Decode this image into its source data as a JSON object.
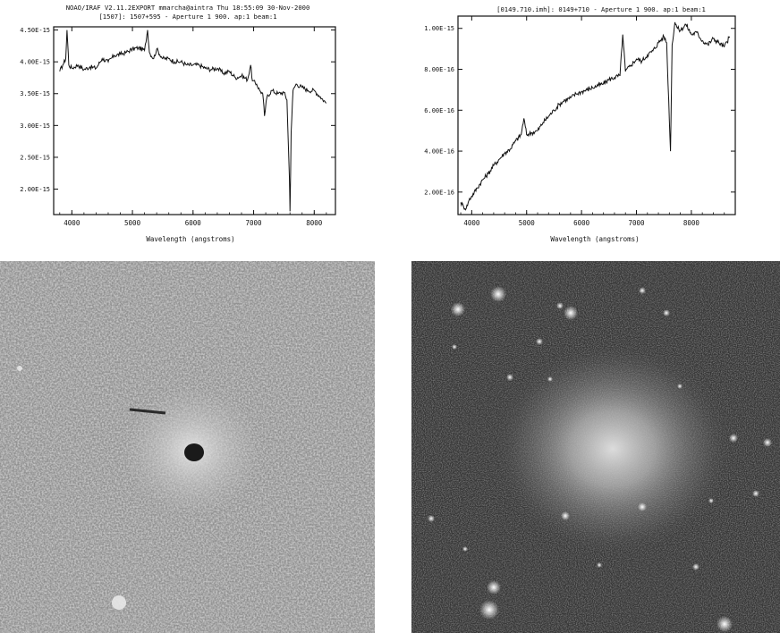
{
  "chart_data": [
    {
      "type": "line",
      "title": "NOAO/IRAF V2.11.2EXPORT mmarcha@aintra Thu 18:55:09 30-Nov-2000",
      "subtitle": "[1507]: 1507+595 - Aperture 1 900. ap:1 beam:1",
      "xlabel": "Wavelength (angstroms)",
      "ylabel": "",
      "xlim": [
        3700,
        8350
      ],
      "ylim": [
        1.6e-15,
        4.55e-15
      ],
      "xticks": [
        4000,
        5000,
        6000,
        7000,
        8000
      ],
      "xtick_labels": [
        "4000",
        "5000",
        "6000",
        "7000",
        "8000"
      ],
      "yticks": [
        2e-15,
        2.5e-15,
        3e-15,
        3.5e-15,
        4e-15,
        4.5e-15
      ],
      "ytick_labels": [
        "2.00E-15",
        "2.50E-15",
        "3.00E-15",
        "3.50E-15",
        "4.00E-15",
        "4.50E-15"
      ],
      "grid": false,
      "series": [
        {
          "x": [
            3800,
            3850,
            3900,
            3920,
            3950,
            4000,
            4100,
            4200,
            4300,
            4400,
            4500,
            4600,
            4700,
            4800,
            4900,
            5000,
            5100,
            5200,
            5250,
            5280,
            5350,
            5400,
            5500,
            5600,
            5700,
            5800,
            5900,
            6000,
            6100,
            6200,
            6300,
            6400,
            6500,
            6600,
            6700,
            6800,
            6900,
            6950,
            6980,
            7050,
            7100,
            7150,
            7180,
            7220,
            7300,
            7400,
            7500,
            7550,
            7590,
            7600,
            7620,
            7650,
            7700,
            7800,
            7900,
            8000,
            8100,
            8200
          ],
          "y": [
            3.85e-15,
            3.95e-15,
            4.05e-15,
            4.5e-15,
            3.95e-15,
            3.9e-15,
            3.95e-15,
            3.88e-15,
            3.92e-15,
            3.9e-15,
            4.05e-15,
            4e-15,
            4.1e-15,
            4.12e-15,
            4.15e-15,
            4.2e-15,
            4.22e-15,
            4.18e-15,
            4.5e-15,
            4.15e-15,
            4.05e-15,
            4.2e-15,
            4.05e-15,
            4.05e-15,
            4e-15,
            4e-15,
            3.95e-15,
            3.95e-15,
            3.95e-15,
            3.9e-15,
            3.88e-15,
            3.9e-15,
            3.82e-15,
            3.85e-15,
            3.75e-15,
            3.78e-15,
            3.72e-15,
            3.95e-15,
            3.7e-15,
            3.65e-15,
            3.55e-15,
            3.5e-15,
            3.15e-15,
            3.45e-15,
            3.55e-15,
            3.5e-15,
            3.52e-15,
            3.4e-15,
            2.2e-15,
            1.65e-15,
            2.9e-15,
            3.55e-15,
            3.65e-15,
            3.6e-15,
            3.55e-15,
            3.55e-15,
            3.45e-15,
            3.35e-15
          ]
        }
      ]
    },
    {
      "type": "line",
      "title": "[0149.710.imh]: 0149+710 - Aperture 1 900. ap:1 beam:1",
      "xlabel": "Wavelength (angstroms)",
      "ylabel": "",
      "xlim": [
        3750,
        8800
      ],
      "ylim": [
        9e-17,
        1.06e-15
      ],
      "xticks": [
        4000,
        5000,
        6000,
        7000,
        8000
      ],
      "xtick_labels": [
        "4000",
        "5000",
        "6000",
        "7000",
        "8000"
      ],
      "yticks": [
        2e-16,
        4e-16,
        6e-16,
        8e-16,
        1e-15
      ],
      "ytick_labels": [
        "2.00E-16",
        "4.00E-16",
        "6.00E-16",
        "8.00E-16",
        "1.00E-15"
      ],
      "grid": false,
      "series": [
        {
          "x": [
            3800,
            3850,
            3900,
            3950,
            4000,
            4100,
            4200,
            4300,
            4400,
            4500,
            4600,
            4700,
            4800,
            4900,
            4950,
            5000,
            5100,
            5200,
            5300,
            5400,
            5500,
            5600,
            5700,
            5800,
            5900,
            6000,
            6100,
            6200,
            6300,
            6400,
            6500,
            6600,
            6700,
            6750,
            6800,
            6900,
            7000,
            7100,
            7200,
            7300,
            7400,
            7500,
            7550,
            7600,
            7620,
            7650,
            7700,
            7750,
            7800,
            7900,
            8000,
            8100,
            8200,
            8300,
            8400,
            8500,
            8600,
            8700
          ],
          "y": [
            1.5e-16,
            1.3e-16,
            1.2e-16,
            1.6e-16,
            1.8e-16,
            2.2e-16,
            2.6e-16,
            2.9e-16,
            3.3e-16,
            3.6e-16,
            3.9e-16,
            4.1e-16,
            4.5e-16,
            4.8e-16,
            5.6e-16,
            4.8e-16,
            4.9e-16,
            5e-16,
            5.4e-16,
            5.7e-16,
            6e-16,
            6.3e-16,
            6.5e-16,
            6.6e-16,
            6.8e-16,
            6.9e-16,
            7e-16,
            7.1e-16,
            7.2e-16,
            7.3e-16,
            7.5e-16,
            7.6e-16,
            7.7e-16,
            9.7e-16,
            7.9e-16,
            8.2e-16,
            8.5e-16,
            8.4e-16,
            8.7e-16,
            8.9e-16,
            9.3e-16,
            9.6e-16,
            9.3e-16,
            5.5e-16,
            4e-16,
            9.2e-16,
            1.03e-15,
            1e-15,
            9.9e-16,
            1.02e-15,
            9.7e-16,
            9.8e-16,
            9.4e-16,
            9.2e-16,
            9.5e-16,
            9.3e-16,
            9.1e-16,
            9.6e-16
          ]
        }
      ]
    }
  ],
  "images": {
    "left": {
      "description_name": "field-image-1507",
      "background": "#9a9a9a"
    },
    "right": {
      "description_name": "field-image-0149",
      "background": "#3a3a3a"
    }
  }
}
